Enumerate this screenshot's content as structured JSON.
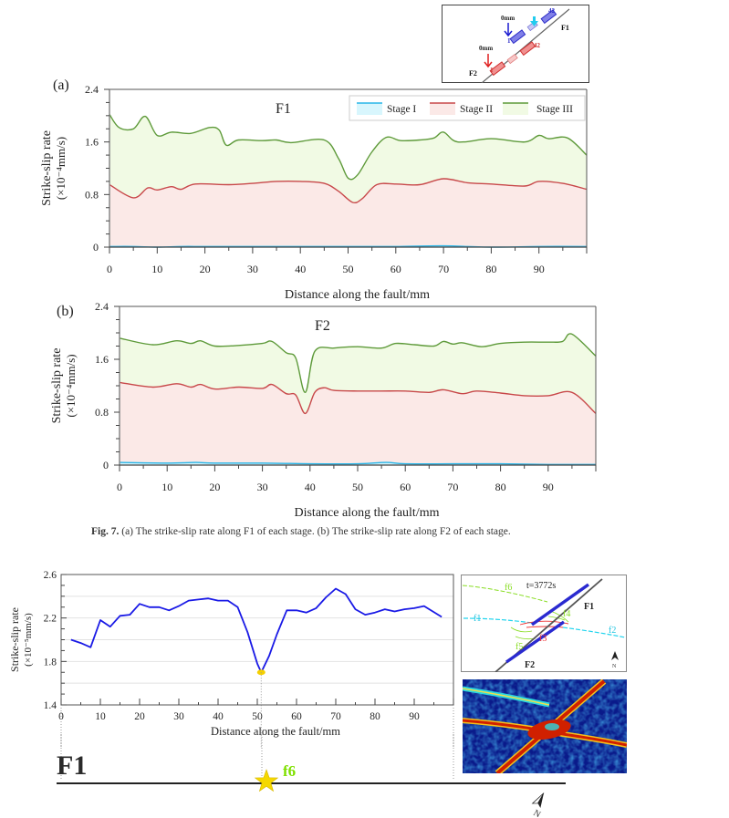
{
  "inset_top": {
    "f1_label": "F1",
    "f2_label": "F2",
    "f1_zero": "0mm",
    "f2_zero": "0mm",
    "f1_start_idx": "1",
    "f1_end_idx": "42",
    "f2_start_idx": "1",
    "f2_end_idx": "42",
    "colors": {
      "f1": "#3a3ad8",
      "f2": "#e03a3a",
      "marker": "#22ccee"
    }
  },
  "caption": {
    "label": "Fig. 7.",
    "text": "(a) The strike-slip rate along F1 of each stage. (b) The strike-slip rate along F2 of each stage."
  },
  "chart_data": [
    {
      "type": "area",
      "panel": "(a)",
      "title": "F1",
      "xlabel": "Distance along the fault/mm",
      "ylabel": "Strike-slip rate",
      "ylabel_unit": "(×10⁻⁴mm/s)",
      "xlim": [
        0,
        100
      ],
      "ylim": [
        0,
        2.4
      ],
      "xticks": [
        "0",
        "10",
        "20",
        "30",
        "40",
        "50",
        "60",
        "70",
        "80",
        "90"
      ],
      "yticks": [
        "0",
        "0.8",
        "1.6",
        "2.4"
      ],
      "legend_position": "top-right",
      "grid": false,
      "series": [
        {
          "name": "Stage I",
          "color": "#29b6e8",
          "fill": "#d8f6fd",
          "x": [
            0,
            5,
            10,
            15,
            20,
            30,
            40,
            50,
            60,
            70,
            80,
            90,
            100
          ],
          "y": [
            0.01,
            0.01,
            0.0,
            0.01,
            0.01,
            0.01,
            0.01,
            0.01,
            0.01,
            0.02,
            0.0,
            0.01,
            0.01
          ]
        },
        {
          "name": "Stage II",
          "color": "#c8484a",
          "fill": "#fbe9e7",
          "x": [
            0,
            5,
            8,
            10,
            13,
            15,
            18,
            25,
            30,
            35,
            40,
            45,
            48,
            51,
            53,
            56,
            60,
            65,
            70,
            75,
            80,
            87,
            90,
            95,
            100
          ],
          "y": [
            0.95,
            0.75,
            0.9,
            0.87,
            0.92,
            0.88,
            0.96,
            0.95,
            0.97,
            1.0,
            1.0,
            0.97,
            0.85,
            0.68,
            0.74,
            0.95,
            0.96,
            0.95,
            1.04,
            0.98,
            0.96,
            0.93,
            1.0,
            0.97,
            0.88
          ]
        },
        {
          "name": "Stage III",
          "color": "#5e9a3a",
          "fill": "#f1fae4",
          "x": [
            0,
            2,
            5,
            7.5,
            10,
            13,
            17,
            21,
            23,
            24.5,
            27,
            32,
            35,
            38,
            45,
            48,
            50,
            52,
            55,
            58,
            61,
            65,
            68,
            70,
            73,
            80,
            87,
            90,
            92,
            96,
            100
          ],
          "y": [
            2.02,
            1.82,
            1.8,
            1.99,
            1.7,
            1.75,
            1.73,
            1.82,
            1.78,
            1.55,
            1.63,
            1.62,
            1.63,
            1.59,
            1.63,
            1.35,
            1.05,
            1.1,
            1.45,
            1.67,
            1.62,
            1.63,
            1.66,
            1.75,
            1.6,
            1.65,
            1.6,
            1.7,
            1.65,
            1.66,
            1.4
          ]
        }
      ]
    },
    {
      "type": "area",
      "panel": "(b)",
      "title": "F2",
      "xlabel": "Distance along the fault/mm",
      "ylabel": "Strike-slip rate",
      "ylabel_unit": "(×10⁻⁴mm/s)",
      "xlim": [
        0,
        100
      ],
      "ylim": [
        0,
        2.4
      ],
      "xticks": [
        "0",
        "10",
        "20",
        "30",
        "40",
        "50",
        "60",
        "70",
        "80",
        "90"
      ],
      "yticks": [
        "0",
        "0.8",
        "1.6",
        "2.4"
      ],
      "grid": false,
      "series": [
        {
          "name": "Stage I",
          "color": "#29b6e8",
          "fill": "#d8f6fd",
          "x": [
            0,
            10,
            16,
            20,
            30,
            40,
            50,
            56,
            60,
            70,
            80,
            90,
            100
          ],
          "y": [
            0.04,
            0.03,
            0.04,
            0.03,
            0.03,
            0.02,
            0.02,
            0.04,
            0.02,
            0.02,
            0.02,
            0.01,
            0.01
          ]
        },
        {
          "name": "Stage II",
          "color": "#c8484a",
          "fill": "#fbe9e7",
          "x": [
            0,
            7,
            12,
            15,
            17,
            20,
            25,
            30,
            32,
            35,
            37,
            39,
            41,
            43,
            45,
            50,
            55,
            60,
            65,
            68,
            72,
            75,
            80,
            85,
            90,
            95,
            100
          ],
          "y": [
            1.25,
            1.18,
            1.23,
            1.18,
            1.22,
            1.15,
            1.18,
            1.16,
            1.22,
            1.08,
            1.06,
            0.78,
            1.1,
            1.17,
            1.13,
            1.12,
            1.12,
            1.12,
            1.1,
            1.14,
            1.08,
            1.12,
            1.09,
            1.05,
            1.05,
            1.1,
            0.78
          ]
        },
        {
          "name": "Stage III",
          "color": "#5e9a3a",
          "fill": "#f1fae4",
          "x": [
            0,
            7,
            12,
            15,
            17,
            20,
            25,
            30,
            32,
            35,
            37,
            39,
            41,
            45,
            50,
            55,
            58,
            62,
            66,
            68,
            70,
            72,
            76,
            80,
            85,
            90,
            93,
            95,
            100
          ],
          "y": [
            1.92,
            1.82,
            1.88,
            1.84,
            1.88,
            1.8,
            1.81,
            1.84,
            1.87,
            1.7,
            1.62,
            1.1,
            1.72,
            1.77,
            1.79,
            1.77,
            1.84,
            1.82,
            1.8,
            1.87,
            1.83,
            1.85,
            1.79,
            1.84,
            1.86,
            1.86,
            1.87,
            1.98,
            1.65
          ]
        }
      ]
    },
    {
      "type": "line",
      "title": "",
      "xlabel": "Distance along the fault/mm",
      "ylabel": "Strike-slip rate",
      "ylabel_unit": "(×10⁻⁵mm/s)",
      "xlim": [
        0,
        100
      ],
      "ylim": [
        1.4,
        2.6
      ],
      "xticks": [
        "0",
        "10",
        "20",
        "30",
        "40",
        "50",
        "60",
        "70",
        "80",
        "90"
      ],
      "yticks": [
        "1.4",
        "1.8",
        "2.2",
        "2.6"
      ],
      "grid": true,
      "series": [
        {
          "name": "F1",
          "color": "#1a1ae6",
          "x": [
            2.5,
            5,
            7.5,
            10,
            12.5,
            15,
            17.5,
            20,
            22.5,
            25,
            27.5,
            30,
            32.5,
            35,
            37.5,
            40,
            42.5,
            45,
            47.5,
            50,
            51,
            53,
            55,
            57.5,
            60,
            62.5,
            65,
            67.5,
            70,
            72.5,
            75,
            77.5,
            80,
            82.5,
            85,
            87.5,
            90,
            92.5,
            97
          ],
          "y": [
            2.0,
            1.97,
            1.93,
            2.18,
            2.12,
            2.22,
            2.23,
            2.33,
            2.3,
            2.3,
            2.27,
            2.31,
            2.36,
            2.37,
            2.38,
            2.36,
            2.36,
            2.3,
            2.07,
            1.78,
            1.7,
            1.85,
            2.05,
            2.27,
            2.27,
            2.25,
            2.29,
            2.39,
            2.47,
            2.42,
            2.28,
            2.23,
            2.25,
            2.28,
            2.26,
            2.28,
            2.29,
            2.31,
            2.21
          ]
        }
      ],
      "highlight_point": {
        "x": 51,
        "y": 1.7,
        "color": "#f5d000"
      }
    }
  ],
  "inset_bottom": {
    "time_label": "t=3772s",
    "fault_labels": [
      "F1",
      "F2"
    ],
    "fracture_labels": [
      "f1",
      "f2",
      "f3",
      "f4",
      "f5",
      "f6"
    ],
    "north_label": "N",
    "colors": {
      "f1": "#22d4ee",
      "f2": "#22d4ee",
      "f3": "#ee3333",
      "f4": "#88dd22",
      "f5": "#88dd22",
      "f6": "#88dd22"
    }
  },
  "fault_strip": {
    "fault_label": "F1",
    "marker_label": "f6",
    "marker_color": "#f5d800",
    "marker_label_color": "#7fe000",
    "north_label": "N"
  }
}
